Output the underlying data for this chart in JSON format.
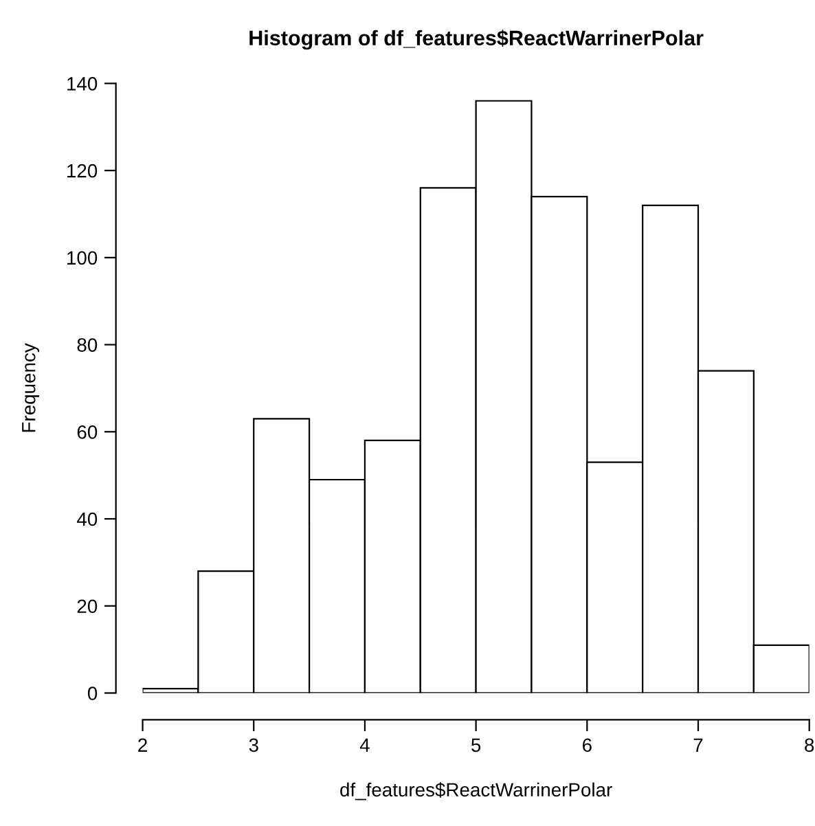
{
  "chart_data": {
    "type": "histogram",
    "title": "Histogram of df_features$ReactWarrinerPolar",
    "xlabel": "df_features$ReactWarrinerPolar",
    "ylabel": "Frequency",
    "bins": [
      2,
      2.5,
      3,
      3.5,
      4,
      4.5,
      5,
      5.5,
      6,
      6.5,
      7,
      7.5,
      8
    ],
    "values": [
      1,
      28,
      63,
      49,
      58,
      116,
      136,
      114,
      53,
      112,
      74,
      11
    ],
    "color": "#ffffff",
    "xlim": [
      2,
      8
    ],
    "ylim": [
      0,
      140
    ],
    "xticks": [
      2,
      3,
      4,
      5,
      6,
      7,
      8
    ],
    "yticks": [
      0,
      20,
      40,
      60,
      80,
      100,
      120,
      140
    ],
    "grid": false,
    "legend": false
  }
}
